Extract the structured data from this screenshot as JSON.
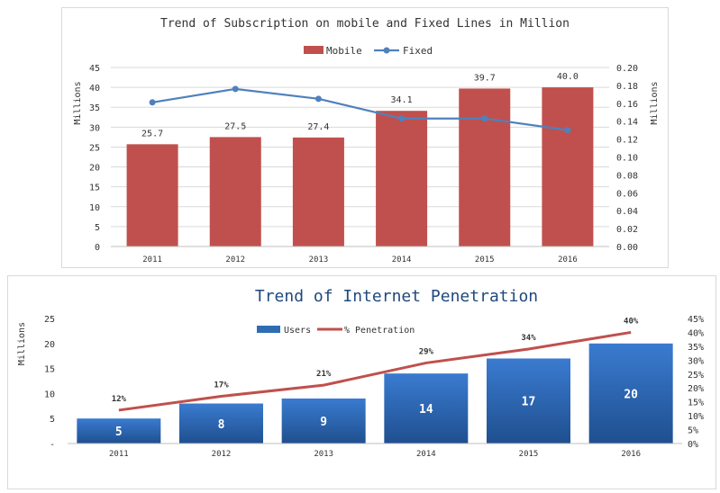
{
  "chart_data": [
    {
      "type": "bar+line",
      "title": "Trend of Subscription on mobile and Fixed Lines in Million",
      "categories": [
        "2011",
        "2012",
        "2013",
        "2014",
        "2015",
        "2016"
      ],
      "series": [
        {
          "name": "Mobile",
          "type": "bar",
          "axis": "left",
          "values": [
            25.7,
            27.5,
            27.4,
            34.1,
            39.7,
            40.0
          ],
          "labels": [
            "25.7",
            "27.5",
            "27.4",
            "34.1",
            "39.7",
            "40.0"
          ],
          "color": "#c0504d"
        },
        {
          "name": "Fixed",
          "type": "line",
          "axis": "right",
          "values": [
            0.161,
            0.176,
            0.165,
            0.143,
            0.143,
            0.13
          ],
          "color": "#4f81bd"
        }
      ],
      "ylabel_left": "Millions",
      "ylabel_right": "Millions",
      "ylim_left": [
        0,
        45
      ],
      "ylim_right": [
        0,
        0.2
      ],
      "yticks_left": [
        "0",
        "5",
        "10",
        "15",
        "20",
        "25",
        "30",
        "35",
        "40",
        "45"
      ],
      "yticks_right": [
        "0.00",
        "0.02",
        "0.04",
        "0.06",
        "0.08",
        "0.10",
        "0.12",
        "0.14",
        "0.16",
        "0.18",
        "0.20"
      ],
      "grid": true,
      "legend": "top-center"
    },
    {
      "type": "bar+line",
      "title": "Trend of  Internet Penetration",
      "categories": [
        "2011",
        "2012",
        "2013",
        "2014",
        "2015",
        "2016"
      ],
      "series": [
        {
          "name": "Users",
          "type": "bar",
          "axis": "left",
          "values": [
            5,
            8,
            9,
            14,
            17,
            20
          ],
          "labels": [
            "5",
            "8",
            "9",
            "14",
            "17",
            "20"
          ],
          "color": "#2e6db4"
        },
        {
          "name": "% Penetration",
          "type": "line",
          "axis": "right",
          "values": [
            12,
            17,
            21,
            29,
            34,
            40
          ],
          "labels": [
            "12%",
            "17%",
            "21%",
            "29%",
            "34%",
            "40%"
          ],
          "color": "#c0504d"
        }
      ],
      "ylabel_left": "Millions",
      "ylim_left": [
        0,
        25
      ],
      "ylim_right": [
        0,
        45
      ],
      "yticks_left": [
        "-",
        "5",
        "10",
        "15",
        "20",
        "25"
      ],
      "yticks_right": [
        "0%",
        "5%",
        "10%",
        "15%",
        "20%",
        "25%",
        "30%",
        "35%",
        "40%",
        "45%"
      ],
      "grid": false,
      "legend": "top-center"
    }
  ]
}
